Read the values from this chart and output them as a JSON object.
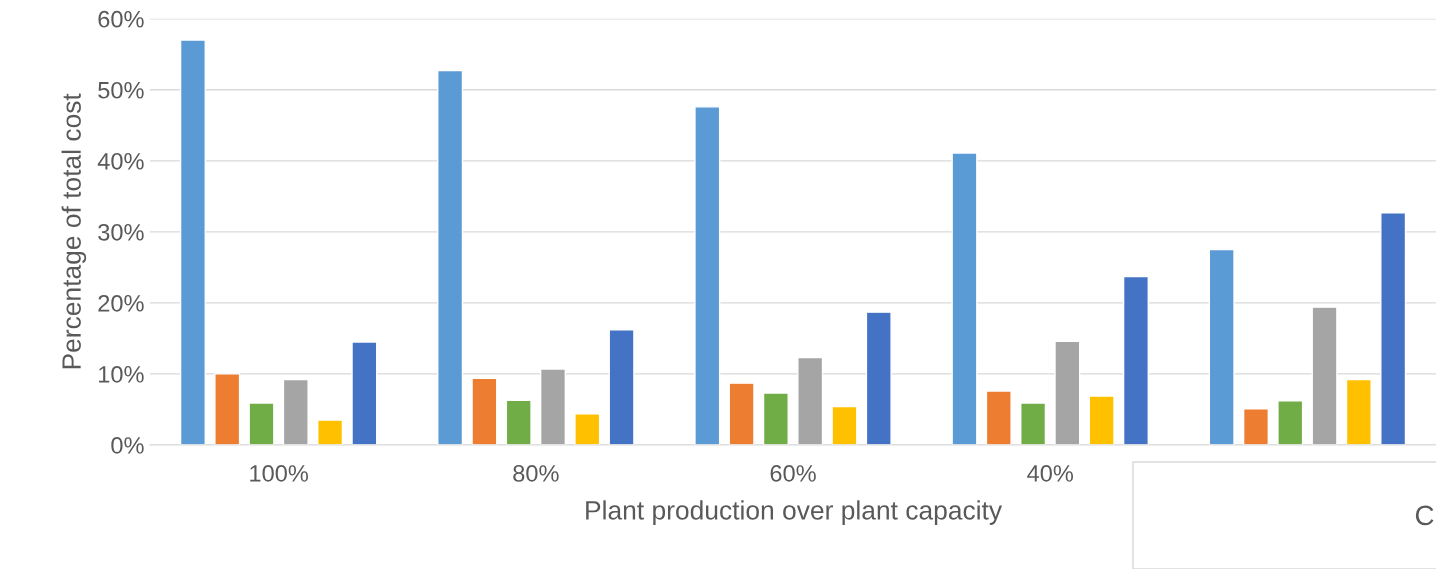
{
  "chart_data": {
    "type": "bar",
    "xlabel": "Plant production over plant capacity",
    "ylabel": "Percentage of total cost",
    "categories": [
      "100%",
      "80%",
      "60%",
      "40%",
      null
    ],
    "series": [
      {
        "color": "#5b9bd5",
        "values": [
          57,
          52.7,
          47.6,
          41.1,
          27.5
        ]
      },
      {
        "color": "#ed7d31",
        "values": [
          10.0,
          9.4,
          8.7,
          7.6,
          5.1
        ]
      },
      {
        "color": "#70ad47",
        "values": [
          5.9,
          6.3,
          7.3,
          5.9,
          6.2
        ]
      },
      {
        "color": "#a5a5a5",
        "values": [
          9.2,
          10.7,
          12.3,
          14.6,
          19.4
        ]
      },
      {
        "color": "#ffc000",
        "values": [
          3.5,
          4.4,
          5.4,
          6.9,
          9.2
        ]
      },
      {
        "color": "#4472c4",
        "values": [
          14.5,
          16.2,
          18.7,
          23.7,
          32.7
        ]
      }
    ],
    "ylim": [
      0,
      60
    ],
    "yticks": [
      {
        "value": 0,
        "label": "0%"
      },
      {
        "value": 10,
        "label": "10%"
      },
      {
        "value": 20,
        "label": "20%"
      },
      {
        "value": 30,
        "label": "30%"
      },
      {
        "value": 40,
        "label": "40%"
      },
      {
        "value": 50,
        "label": "50%"
      },
      {
        "value": 60,
        "label": "60%"
      }
    ],
    "grid": "y",
    "legend": false,
    "annotations": [
      "C"
    ]
  }
}
